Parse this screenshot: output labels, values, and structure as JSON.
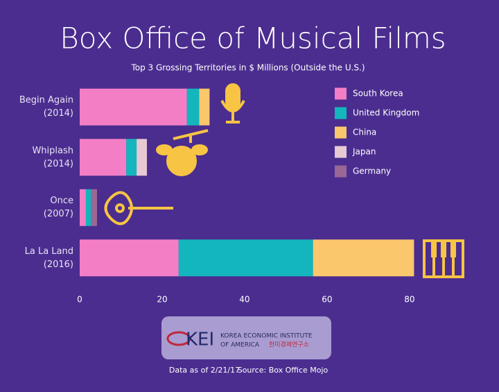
{
  "chart_data": {
    "type": "stacked-barh",
    "title": "Box Office of Musical Films",
    "subtitle": "Top 3 Grossing Territories in $ Millions (Outside the U.S.)",
    "categories": [
      "Begin Again\n(2014)",
      "Whiplash\n(2014)",
      "Once\n(2007)",
      "La La Land\n(2016)"
    ],
    "series": [
      {
        "name": "South Korea",
        "color": "#f47ec6",
        "values": [
          26,
          11.3,
          1.5,
          24
        ]
      },
      {
        "name": "United Kingdom",
        "color": "#14b6bd",
        "values": [
          3,
          2.5,
          1.2,
          32.6
        ]
      },
      {
        "name": "China",
        "color": "#fbc76c",
        "values": [
          2.5,
          null,
          null,
          24.5
        ]
      },
      {
        "name": "Japan",
        "color": "#e6c9d3",
        "values": [
          null,
          2.5,
          null,
          null
        ]
      },
      {
        "name": "Germany",
        "color": "#9a6896",
        "values": [
          null,
          null,
          1.5,
          null
        ]
      }
    ],
    "xlim": [
      0,
      97
    ],
    "xticks": [
      0,
      20,
      40,
      60,
      80
    ],
    "logo": {
      "mark": "KEI",
      "line1": "KOREA ECONOMIC INSTITUTE",
      "line2": "OF AMERICA",
      "korean": "한미경제연구소"
    },
    "footer": {
      "date": "Data as of 2/21/17",
      "source": "Source: Box Office Mojo"
    }
  }
}
